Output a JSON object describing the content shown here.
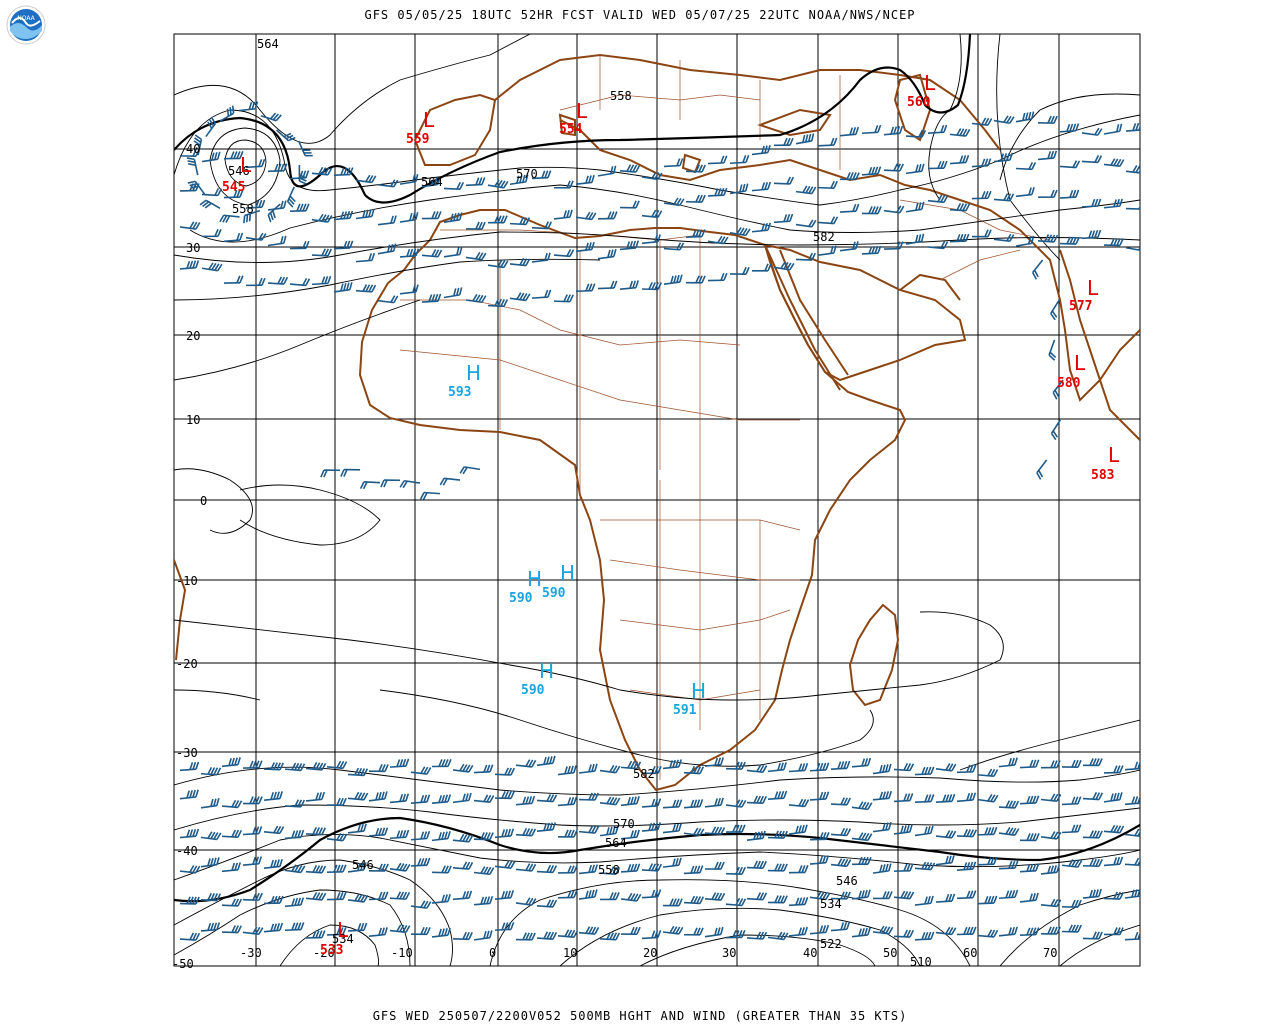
{
  "header": {
    "title": "GFS 05/05/25 18UTC 52HR FCST VALID WED 05/07/25 22UTC NOAA/NWS/NCEP"
  },
  "footer": {
    "title": "GFS WED 250507/2200V052 500MB HGHT AND WIND (GREATER THAN 35 KTS)"
  },
  "logo": {
    "text": "NOAA"
  },
  "colors": {
    "grid": "#000000",
    "coast": "#8b4513",
    "border": "#a0522d",
    "contour": "#000000",
    "wind_barb": "#1f5b8a",
    "low": "#e00000",
    "high": "#1aa3e0"
  },
  "map": {
    "lat_labels": [
      "40",
      "30",
      "20",
      "10",
      "0",
      "-10",
      "-20",
      "-30",
      "-40",
      "-50"
    ],
    "lon_labels": [
      "-30",
      "-20",
      "-10",
      "0",
      "10",
      "20",
      "30",
      "40",
      "50",
      "60",
      "70"
    ],
    "contour_labels": [
      {
        "text": "564"
      },
      {
        "text": "558"
      },
      {
        "text": "564"
      },
      {
        "text": "570"
      },
      {
        "text": "582"
      },
      {
        "text": "546"
      },
      {
        "text": "558"
      },
      {
        "text": "582"
      },
      {
        "text": "570"
      },
      {
        "text": "564"
      },
      {
        "text": "558"
      },
      {
        "text": "546"
      },
      {
        "text": "534"
      },
      {
        "text": "522"
      },
      {
        "text": "510"
      },
      {
        "text": "546"
      },
      {
        "text": "534"
      }
    ],
    "lows": [
      {
        "letter": "L",
        "value": "545"
      },
      {
        "letter": "L",
        "value": "559"
      },
      {
        "letter": "L",
        "value": "554"
      },
      {
        "letter": "L",
        "value": "560"
      },
      {
        "letter": "L",
        "value": "577"
      },
      {
        "letter": "L",
        "value": "580"
      },
      {
        "letter": "L",
        "value": "583"
      },
      {
        "letter": "L",
        "value": "533"
      }
    ],
    "highs": [
      {
        "letter": "H",
        "value": "593"
      },
      {
        "letter": "H",
        "value": "590"
      },
      {
        "letter": "H",
        "value": "590"
      },
      {
        "letter": "H",
        "value": "590"
      },
      {
        "letter": "H",
        "value": "591"
      }
    ]
  }
}
